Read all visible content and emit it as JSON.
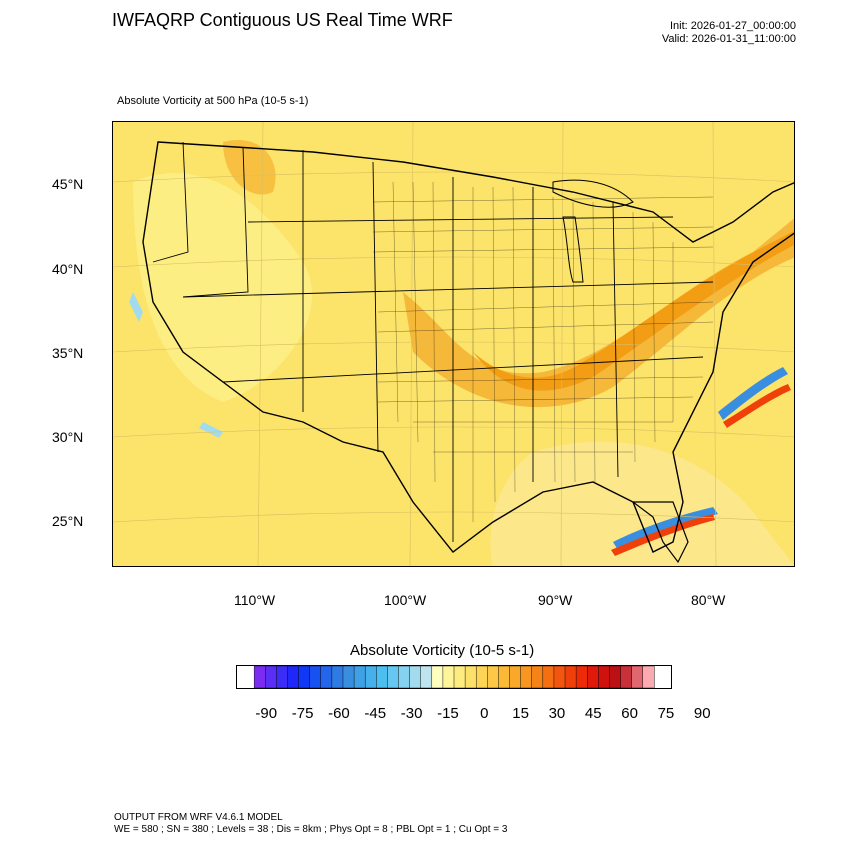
{
  "header": {
    "title": "IWFAQRP Contiguous US Real Time WRF",
    "init": "Init: 2026-01-27_00:00:00",
    "valid": "Valid: 2026-01-31_11:00:00"
  },
  "map": {
    "field_title": "Absolute Vorticity at 500 hPa   (10-5 s-1)",
    "lat_labels": [
      "45°N",
      "40°N",
      "35°N",
      "30°N",
      "25°N"
    ],
    "lon_labels": [
      "110°W",
      "100°W",
      "90°W",
      "80°W"
    ],
    "background_color": "#fce36a",
    "max_band_color": "#f29a10"
  },
  "colorbar": {
    "title": "Absolute Vorticity  (10-5 s-1)",
    "tick_labels": [
      "-90",
      "-75",
      "-60",
      "-45",
      "-30",
      "-15",
      "0",
      "15",
      "30",
      "45",
      "60",
      "75",
      "90"
    ],
    "colors": [
      "#7a2df0",
      "#5a2ff5",
      "#3c2cf8",
      "#1e28fa",
      "#1038f5",
      "#1752f0",
      "#2466ea",
      "#2f7ae4",
      "#3a8ee0",
      "#3fa0e6",
      "#45b0ec",
      "#4cbef0",
      "#66c8f0",
      "#85d2f0",
      "#a3dbee",
      "#bfe4ee",
      "#fefebe",
      "#fef59a",
      "#fdec80",
      "#fde06a",
      "#fcd456",
      "#fcc845",
      "#fbb935",
      "#f9a82a",
      "#f79620",
      "#f58318",
      "#f46e12",
      "#f2560e",
      "#f0400a",
      "#ee2a08",
      "#e01a0a",
      "#d0120e",
      "#bc1014",
      "#c8303a",
      "#e06670",
      "#fbaab0"
    ]
  },
  "footer": {
    "line1": "OUTPUT FROM WRF V4.6.1 MODEL",
    "line2": "WE = 580 ; SN = 380 ; Levels = 38 ; Dis = 8km ; Phys Opt = 8 ; PBL Opt = 1 ; Cu Opt = 3"
  }
}
